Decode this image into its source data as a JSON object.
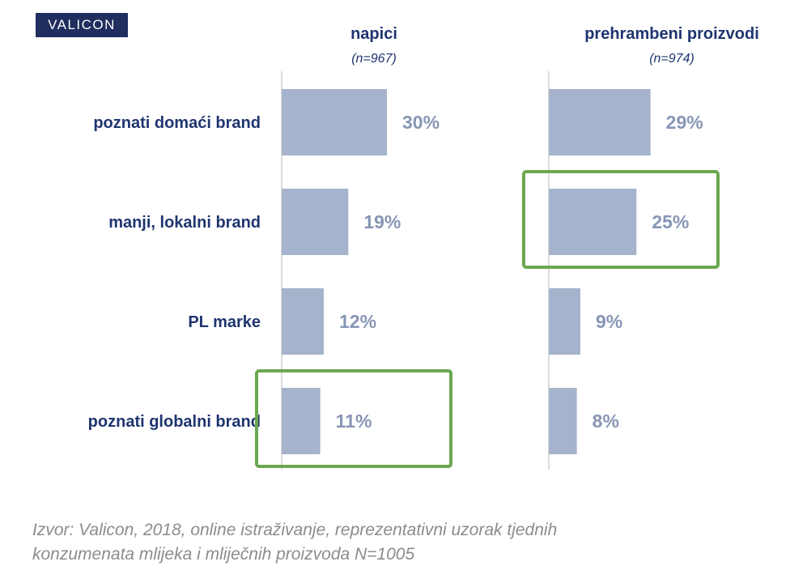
{
  "logo": {
    "text": "VALICON"
  },
  "chart_data": {
    "type": "bar",
    "orientation": "horizontal",
    "categories": [
      "poznati domaći brand",
      "manji, lokalni brand",
      "PL marke",
      "poznati globalni brand"
    ],
    "series": [
      {
        "name": "napici",
        "n_label": "(n=967)",
        "values": [
          30,
          19,
          12,
          11
        ],
        "labels": [
          "30%",
          "19%",
          "12%",
          "11%"
        ]
      },
      {
        "name": "prehrambeni proizvodi",
        "n_label": "(n=974)",
        "values": [
          29,
          25,
          9,
          8
        ],
        "labels": [
          "29%",
          "25%",
          "9%",
          "8%"
        ]
      }
    ],
    "highlights": [
      {
        "series": "napici",
        "category": "poznati globalni brand"
      },
      {
        "series": "prehrambeni proizvodi",
        "category": "manji, lokalni brand"
      }
    ],
    "xlim": [
      0,
      30
    ],
    "grid": false,
    "legend": "none",
    "colors": {
      "bar": "#a6b3cc",
      "value_label": "#8796b5",
      "category_label": "#1f3570",
      "highlight": "#6aa84f",
      "axis": "#d0d0d0"
    }
  },
  "source": {
    "line1": "Izvor: Valicon, 2018, online istraživanje, reprezentativni uzorak tjednih",
    "line2": "konzumenata mlijeka i mliječnih proizvoda N=1005"
  }
}
